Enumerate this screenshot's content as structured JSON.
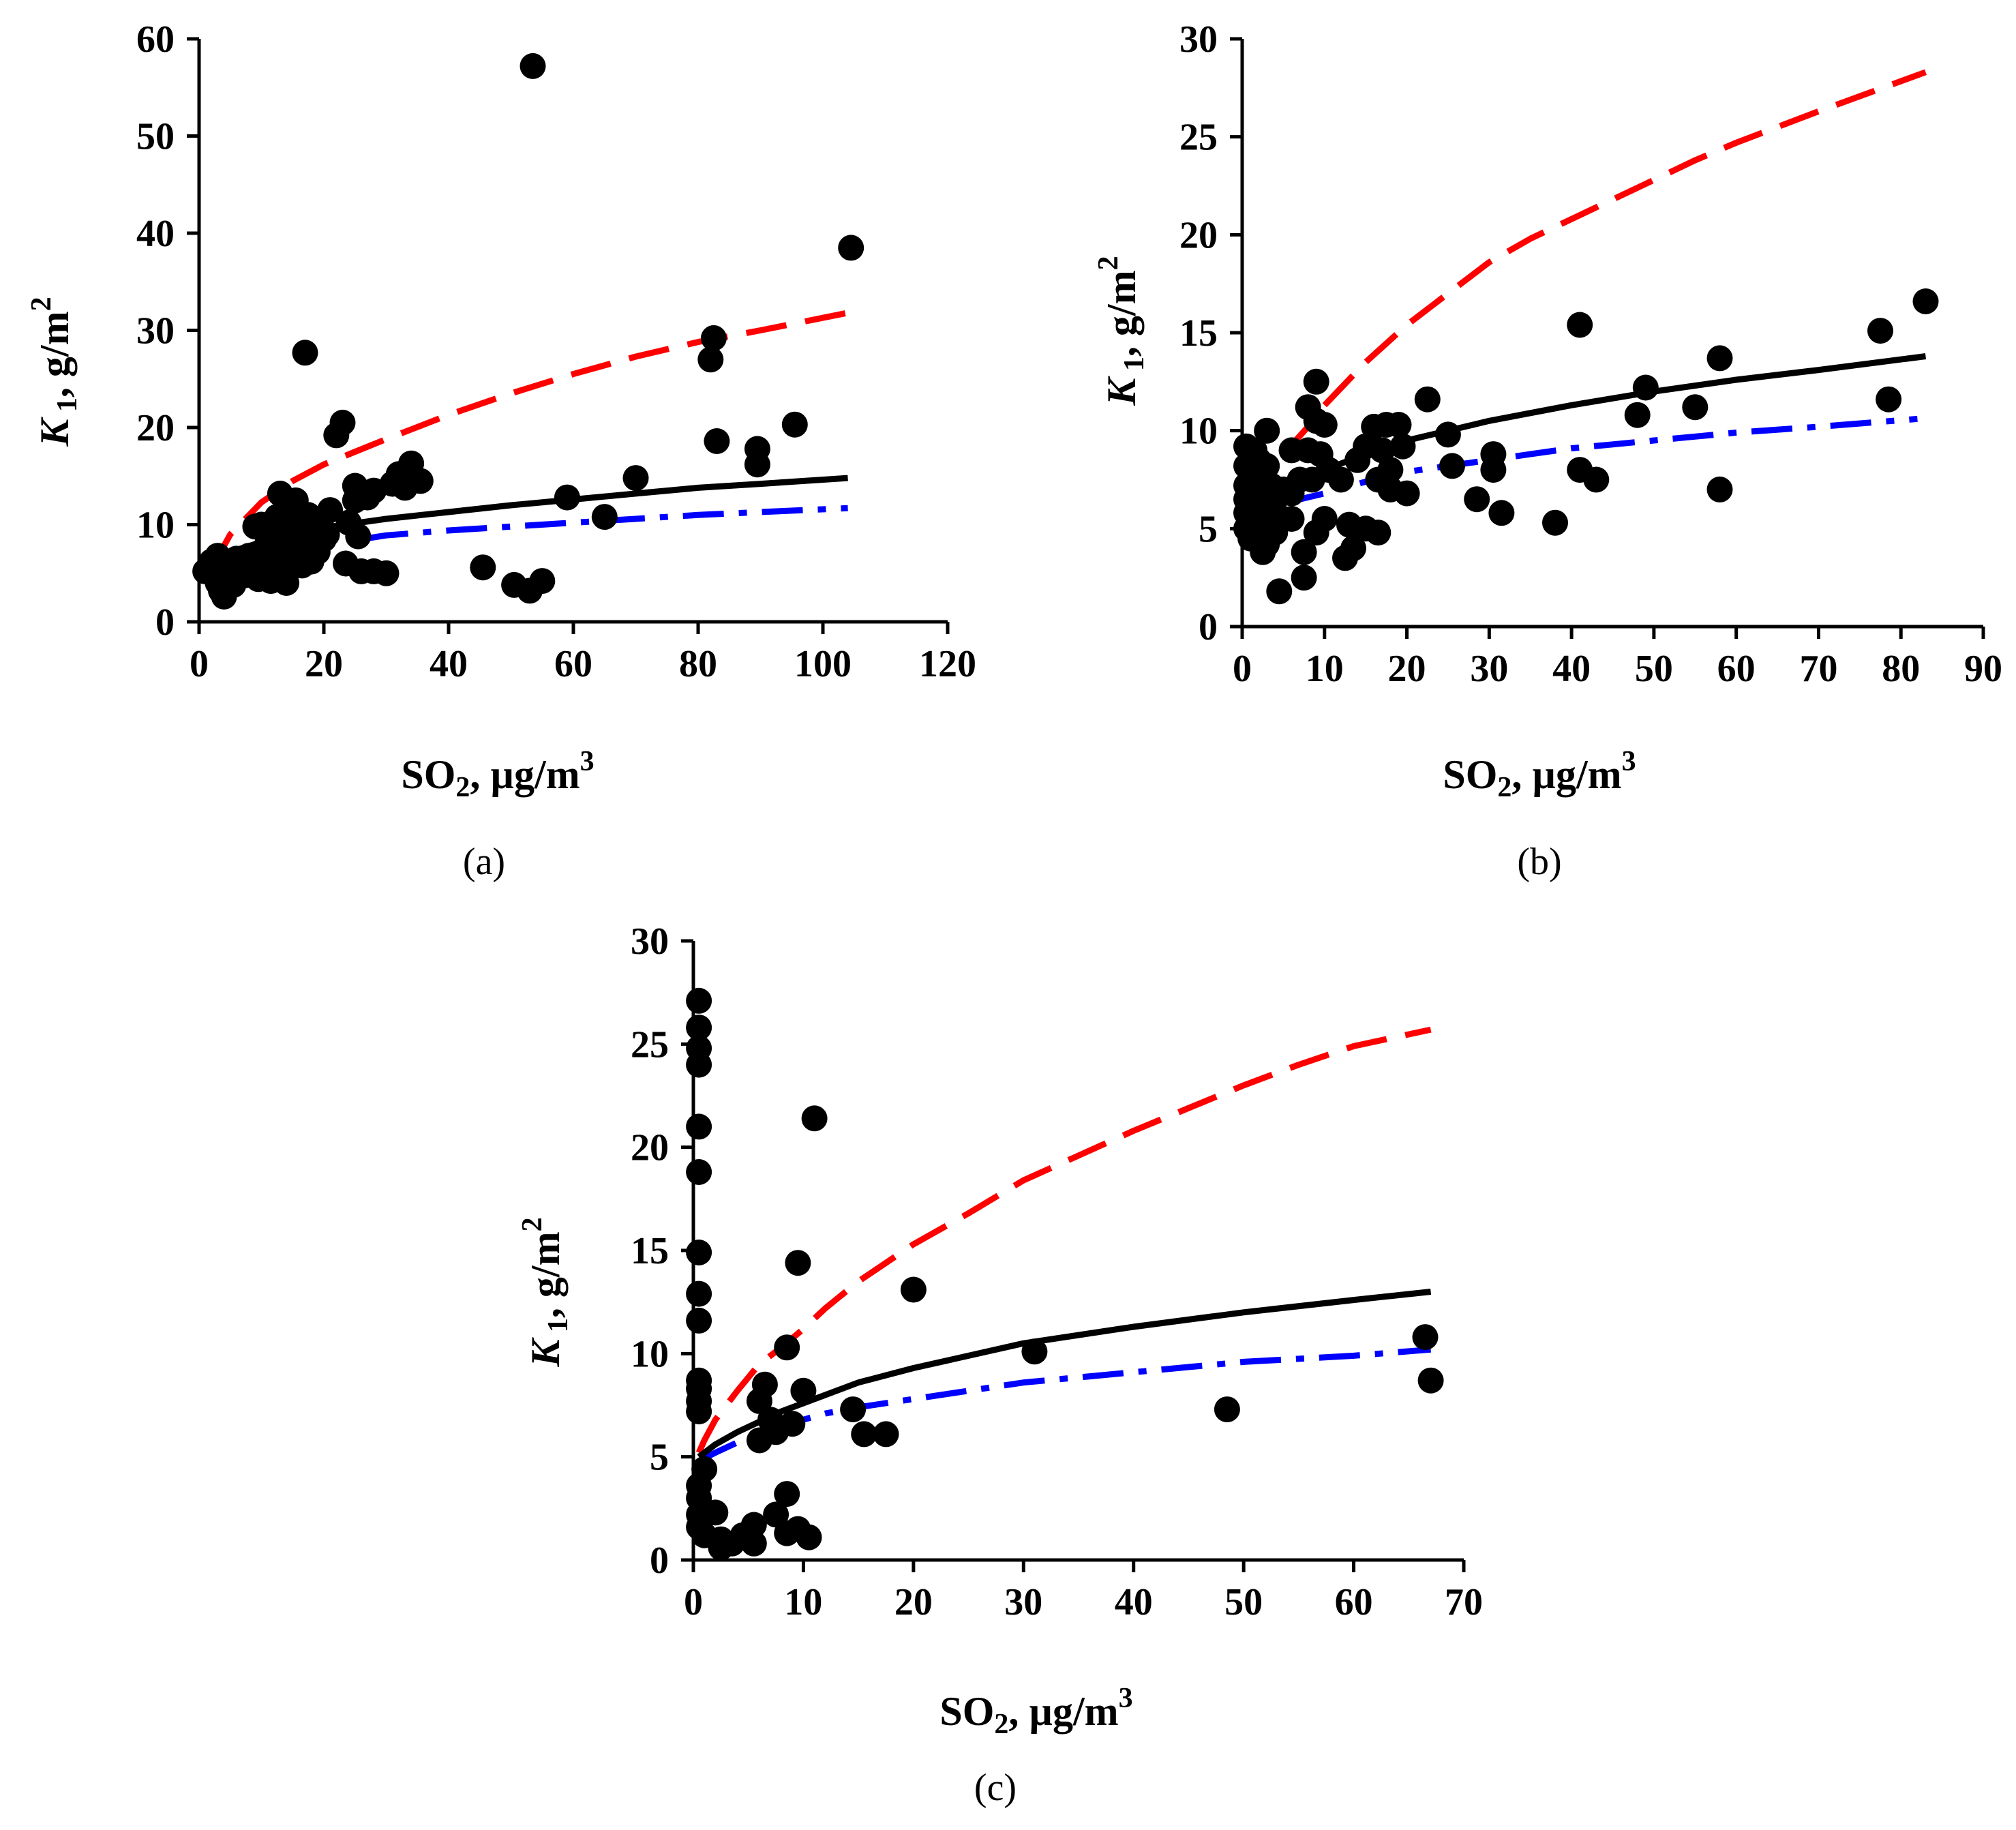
{
  "chart_data": [
    {
      "type": "scatter",
      "panel_label": "(a)",
      "xlabel": {
        "base": "SO",
        "sub": "2",
        "rest": ", µg/m",
        "sup": "3"
      },
      "ylabel": {
        "base": "K",
        "sub": " 1",
        "rest": ", g/m",
        "sup": "2"
      },
      "xlim": [
        0,
        120
      ],
      "ylim": [
        0,
        60
      ],
      "xticks": [
        0,
        20,
        40,
        60,
        80,
        100,
        120
      ],
      "yticks": [
        0,
        10,
        20,
        30,
        40,
        50,
        60
      ],
      "colors": {
        "points": "#000000",
        "solid": "#000000",
        "upper": "#ff0000",
        "lower": "#0000ff"
      },
      "points": [
        [
          1,
          5.2
        ],
        [
          2,
          6.2
        ],
        [
          2.5,
          4.8
        ],
        [
          3,
          6.8
        ],
        [
          3,
          4
        ],
        [
          3.5,
          3.2
        ],
        [
          4,
          5.5
        ],
        [
          4,
          2.6
        ],
        [
          4.5,
          6.2
        ],
        [
          5,
          4.5
        ],
        [
          5.5,
          3.8
        ],
        [
          6,
          6.5
        ],
        [
          6,
          5.2
        ],
        [
          7,
          5.6
        ],
        [
          7.5,
          4.8
        ],
        [
          8,
          6.8
        ],
        [
          8.5,
          5.2
        ],
        [
          9,
          9.8
        ],
        [
          9.5,
          4.4
        ],
        [
          10,
          7.2
        ],
        [
          10,
          10
        ],
        [
          11,
          5.8
        ],
        [
          11,
          8.2
        ],
        [
          11.5,
          4.2
        ],
        [
          12,
          6.5
        ],
        [
          12,
          9.5
        ],
        [
          12.5,
          10.8
        ],
        [
          13,
          13.2
        ],
        [
          13,
          7.5
        ],
        [
          13.5,
          5.2
        ],
        [
          14,
          4
        ],
        [
          14,
          8.8
        ],
        [
          14.5,
          11.5
        ],
        [
          15,
          6.2
        ],
        [
          15,
          9.2
        ],
        [
          15.5,
          12.5
        ],
        [
          16,
          7.8
        ],
        [
          16,
          10.5
        ],
        [
          16.5,
          5.8
        ],
        [
          17,
          27.7
        ],
        [
          17,
          8.5
        ],
        [
          17.5,
          11
        ],
        [
          18,
          6.2
        ],
        [
          18.5,
          9.8
        ],
        [
          19,
          7.2
        ],
        [
          19.5,
          10.2
        ],
        [
          20,
          8.5
        ],
        [
          20.5,
          9
        ],
        [
          21,
          11.5
        ],
        [
          22,
          19.2
        ],
        [
          23,
          20.5
        ],
        [
          23.5,
          6
        ],
        [
          24,
          10.2
        ],
        [
          25,
          14
        ],
        [
          25,
          12.5
        ],
        [
          25.5,
          8.8
        ],
        [
          26,
          5.2
        ],
        [
          27,
          12.8
        ],
        [
          28,
          5.2
        ],
        [
          28,
          13.5
        ],
        [
          30,
          5
        ],
        [
          31,
          14.2
        ],
        [
          32,
          15.2
        ],
        [
          33,
          13.8
        ],
        [
          34,
          16.3
        ],
        [
          35.5,
          14.5
        ],
        [
          45.5,
          5.6
        ],
        [
          50.5,
          3.8
        ],
        [
          53,
          3.2
        ],
        [
          53.5,
          57.2
        ],
        [
          55,
          4.2
        ],
        [
          59,
          12.8
        ],
        [
          65,
          10.8
        ],
        [
          70,
          14.8
        ],
        [
          82,
          27
        ],
        [
          82.5,
          29.2
        ],
        [
          83,
          18.6
        ],
        [
          89.5,
          16.2
        ],
        [
          89.5,
          17.8
        ],
        [
          95.5,
          20.3
        ],
        [
          104.5,
          38.5
        ]
      ],
      "curves": {
        "solid": {
          "x": [
            0.5,
            5,
            10,
            15,
            20,
            30,
            40,
            50,
            60,
            70,
            80,
            90,
            104
          ],
          "y": [
            5,
            7.2,
            8.2,
            9,
            9.7,
            10.6,
            11.3,
            12,
            12.6,
            13.2,
            13.8,
            14.2,
            14.8
          ]
        },
        "upper": {
          "x": [
            2,
            5,
            10,
            15,
            20,
            25,
            30,
            40,
            50,
            60,
            70,
            80,
            90,
            104
          ],
          "y": [
            5.5,
            9,
            12.3,
            14.5,
            16.2,
            17.5,
            18.8,
            21.3,
            23.5,
            25.5,
            27.3,
            28.8,
            30,
            31.8
          ]
        },
        "lower": {
          "x": [
            27,
            30,
            40,
            50,
            60,
            70,
            80,
            90,
            104
          ],
          "y": [
            8.6,
            8.9,
            9.4,
            9.8,
            10.2,
            10.6,
            11,
            11.3,
            11.7
          ]
        }
      }
    },
    {
      "type": "scatter",
      "panel_label": "(b)",
      "xlabel": {
        "base": "SO",
        "sub": "2",
        "rest": ", µg/m",
        "sup": "3"
      },
      "ylabel": {
        "base": "K",
        "sub": " 1",
        "rest": ", g/m",
        "sup": "2"
      },
      "xlim": [
        0,
        90
      ],
      "ylim": [
        0,
        30
      ],
      "xticks": [
        0,
        10,
        20,
        30,
        40,
        50,
        60,
        70,
        80,
        90
      ],
      "yticks": [
        0,
        5,
        10,
        15,
        20,
        25,
        30
      ],
      "colors": {
        "points": "#000000",
        "solid": "#000000",
        "upper": "#ff0000",
        "lower": "#0000ff"
      },
      "points": [
        [
          0.5,
          9.2
        ],
        [
          0.5,
          8.2
        ],
        [
          0.5,
          7.2
        ],
        [
          0.5,
          6.5
        ],
        [
          0.5,
          5.8
        ],
        [
          0.5,
          5
        ],
        [
          1,
          7.8
        ],
        [
          1,
          6.2
        ],
        [
          1,
          4.5
        ],
        [
          1.5,
          9
        ],
        [
          1.5,
          7
        ],
        [
          1.5,
          5.5
        ],
        [
          2,
          8.5
        ],
        [
          2,
          6.8
        ],
        [
          2,
          4.8
        ],
        [
          2.5,
          7.5
        ],
        [
          2.5,
          5.2
        ],
        [
          2.5,
          3.8
        ],
        [
          3,
          10
        ],
        [
          3,
          8.2
        ],
        [
          3,
          6
        ],
        [
          3,
          4.2
        ],
        [
          3.5,
          7.2
        ],
        [
          3.5,
          5
        ],
        [
          4,
          6.5
        ],
        [
          4,
          4.8
        ],
        [
          4.5,
          1.8
        ],
        [
          5,
          7
        ],
        [
          5,
          5.5
        ],
        [
          6,
          9
        ],
        [
          6,
          6.8
        ],
        [
          6,
          5.5
        ],
        [
          7,
          7.5
        ],
        [
          7.5,
          3.8
        ],
        [
          7.5,
          2.5
        ],
        [
          8,
          11.2
        ],
        [
          8,
          9
        ],
        [
          8.5,
          7.5
        ],
        [
          9,
          12.5
        ],
        [
          9,
          10.5
        ],
        [
          9,
          4.8
        ],
        [
          9.5,
          8.8
        ],
        [
          10,
          10.3
        ],
        [
          10,
          5.5
        ],
        [
          10.5,
          8
        ],
        [
          12,
          7.5
        ],
        [
          12.5,
          3.5
        ],
        [
          13,
          5.2
        ],
        [
          13.5,
          4
        ],
        [
          14,
          8.5
        ],
        [
          15,
          9.2
        ],
        [
          15,
          5
        ],
        [
          16,
          10.2
        ],
        [
          16.5,
          4.8
        ],
        [
          16.5,
          7.5
        ],
        [
          17,
          9
        ],
        [
          17.5,
          10.3
        ],
        [
          18,
          7
        ],
        [
          18,
          8
        ],
        [
          19,
          10.3
        ],
        [
          19.5,
          9.2
        ],
        [
          20,
          6.8
        ],
        [
          22.5,
          11.6
        ],
        [
          25,
          9.8
        ],
        [
          25.5,
          8.2
        ],
        [
          28.5,
          6.5
        ],
        [
          30.5,
          8.8
        ],
        [
          30.5,
          8
        ],
        [
          31.5,
          5.8
        ],
        [
          38,
          5.3
        ],
        [
          41,
          15.4
        ],
        [
          41,
          8
        ],
        [
          43,
          7.5
        ],
        [
          48,
          10.8
        ],
        [
          49,
          12.2
        ],
        [
          55,
          11.2
        ],
        [
          58,
          13.7
        ],
        [
          58,
          7
        ],
        [
          77.5,
          15.1
        ],
        [
          78.5,
          11.6
        ],
        [
          83,
          16.6
        ]
      ],
      "curves": {
        "solid": {
          "x": [
            0.5,
            5,
            10,
            15,
            20,
            30,
            40,
            50,
            60,
            70,
            83
          ],
          "y": [
            6.2,
            7.2,
            8,
            8.8,
            9.5,
            10.5,
            11.3,
            12,
            12.6,
            13.1,
            13.8
          ]
        },
        "upper": {
          "x": [
            1,
            3,
            5,
            8,
            10,
            15,
            20,
            25,
            30,
            35,
            40,
            45,
            50,
            55,
            60,
            70,
            83
          ],
          "y": [
            6.5,
            7.8,
            8.8,
            10.2,
            11.3,
            13.5,
            15.4,
            17,
            18.6,
            19.8,
            20.8,
            21.8,
            22.8,
            23.8,
            24.7,
            26.3,
            28.3
          ]
        },
        "lower": {
          "x": [
            5,
            10,
            15,
            20,
            25,
            30,
            35,
            40,
            45,
            50,
            55,
            60,
            70,
            82
          ],
          "y": [
            6.3,
            6.8,
            7.4,
            7.9,
            8.2,
            8.5,
            8.8,
            9.1,
            9.3,
            9.5,
            9.7,
            9.9,
            10.2,
            10.6
          ]
        }
      }
    },
    {
      "type": "scatter",
      "panel_label": "(c)",
      "xlabel": {
        "base": "SO",
        "sub": "2",
        "rest": ", µg/m",
        "sup": "3"
      },
      "ylabel": {
        "base": "K",
        "sub": " 1",
        "rest": ", g/m",
        "sup": "2"
      },
      "xlim": [
        0,
        70
      ],
      "ylim": [
        0,
        30
      ],
      "xticks": [
        0,
        10,
        20,
        30,
        40,
        50,
        60,
        70
      ],
      "yticks": [
        0,
        5,
        10,
        15,
        20,
        25,
        30
      ],
      "colors": {
        "points": "#000000",
        "solid": "#000000",
        "upper": "#ff0000",
        "lower": "#0000ff"
      },
      "points": [
        [
          0.5,
          27.1
        ],
        [
          0.5,
          25.8
        ],
        [
          0.5,
          24.8
        ],
        [
          0.5,
          24
        ],
        [
          0.5,
          21
        ],
        [
          0.5,
          18.8
        ],
        [
          0.5,
          14.9
        ],
        [
          0.5,
          12.9
        ],
        [
          0.5,
          11.6
        ],
        [
          0.5,
          8.7
        ],
        [
          0.5,
          8.3
        ],
        [
          0.5,
          7.7
        ],
        [
          0.5,
          7.2
        ],
        [
          0.5,
          3.6
        ],
        [
          0.5,
          3
        ],
        [
          0.5,
          2.2
        ],
        [
          0.5,
          1.6
        ],
        [
          1,
          4.4
        ],
        [
          1,
          2.4
        ],
        [
          1,
          1.2
        ],
        [
          2,
          2.3
        ],
        [
          2.5,
          1
        ],
        [
          2.5,
          0.6
        ],
        [
          3.5,
          0.8
        ],
        [
          4.5,
          1.2
        ],
        [
          5.5,
          0.8
        ],
        [
          5.5,
          1.7
        ],
        [
          6,
          5.8
        ],
        [
          6,
          7.7
        ],
        [
          6.5,
          8.5
        ],
        [
          7,
          6.8
        ],
        [
          7.5,
          6.2
        ],
        [
          7.5,
          2.2
        ],
        [
          8.5,
          10.3
        ],
        [
          8.5,
          3.2
        ],
        [
          8.5,
          1.3
        ],
        [
          9,
          6.6
        ],
        [
          9.5,
          14.4
        ],
        [
          9.5,
          1.5
        ],
        [
          10,
          8.2
        ],
        [
          10.5,
          1.1
        ],
        [
          11,
          21.4
        ],
        [
          14.5,
          7.3
        ],
        [
          15.5,
          6.1
        ],
        [
          17.5,
          6.1
        ],
        [
          20,
          13.1
        ],
        [
          31,
          10.1
        ],
        [
          48.5,
          7.3
        ],
        [
          66.5,
          10.8
        ],
        [
          67,
          8.7
        ]
      ],
      "curves": {
        "solid": {
          "x": [
            0.5,
            2,
            4,
            6,
            8,
            10,
            12,
            15,
            20,
            25,
            30,
            40,
            50,
            60,
            67
          ],
          "y": [
            5,
            5.6,
            6.2,
            6.7,
            7.2,
            7.6,
            8,
            8.6,
            9.3,
            9.9,
            10.5,
            11.3,
            12,
            12.6,
            13
          ]
        },
        "upper": {
          "x": [
            0.5,
            1,
            2,
            4,
            6,
            8,
            10,
            12,
            15,
            20,
            25,
            30,
            35,
            40,
            45,
            50,
            55,
            60,
            67
          ],
          "y": [
            5.2,
            5.8,
            6.8,
            8.2,
            9.5,
            10.3,
            11.2,
            12.2,
            13.5,
            15.3,
            16.8,
            18.4,
            19.6,
            20.8,
            21.9,
            23,
            24,
            24.9,
            25.7
          ]
        },
        "lower": {
          "x": [
            0.5,
            2,
            4,
            6,
            8,
            10,
            12,
            15,
            20,
            25,
            30,
            40,
            50,
            60,
            67
          ],
          "y": [
            4.8,
            5.2,
            5.7,
            6.1,
            6.5,
            6.8,
            7.1,
            7.4,
            7.8,
            8.2,
            8.6,
            9.1,
            9.6,
            9.9,
            10.2
          ]
        }
      }
    }
  ]
}
